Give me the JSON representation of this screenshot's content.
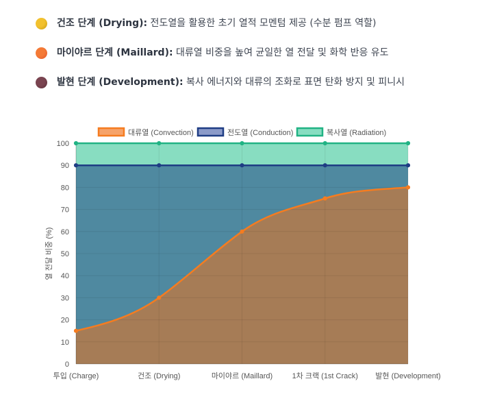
{
  "stages": [
    {
      "title": "건조 단계 (Drying):",
      "desc": " 전도열을 활용한 초기 열적 모멘텀 제공 (수분 펌프 역할)",
      "color": "#f2c12e",
      "color_dark": "#c79a12"
    },
    {
      "title": "마이야르 단계 (Maillard):",
      "desc": " 대류열 비중을 높여 균일한 열 전달 및 화학 반응 유도",
      "color": "#f47a36",
      "color_dark": "#e2552a"
    },
    {
      "title": "발현 단계 (Development):",
      "desc": " 복사 에너지와 대류의 조화로 표면 탄화 방지 및 피니시",
      "color": "#7a4450",
      "color_dark": "#5b2f3a"
    }
  ],
  "chart_data": {
    "type": "area",
    "stacked": true,
    "categories": [
      "투입 (Charge)",
      "건조 (Drying)",
      "마이야르 (Maillard)",
      "1차 크랙 (1st Crack)",
      "발현 (Development)"
    ],
    "series": [
      {
        "name": "대류열 (Convection)",
        "values": [
          15,
          30,
          60,
          75,
          80
        ],
        "color": "#f57c20",
        "fill": "#a67c56",
        "legend_fill": "#f6a36a"
      },
      {
        "name": "전도열 (Conduction)",
        "values": [
          75,
          60,
          30,
          15,
          10
        ],
        "color": "#1f3d84",
        "fill": "#4f89a0",
        "legend_fill": "#8c9bc9"
      },
      {
        "name": "복사열 (Radiation)",
        "values": [
          10,
          10,
          10,
          10,
          10
        ],
        "color": "#21b384",
        "fill": "#88ddc1",
        "legend_fill": "#88ddc1"
      }
    ],
    "xlabel": "",
    "ylabel": "열 전달 비중 (%)",
    "ylim": [
      0,
      100
    ],
    "yticks": [
      0,
      10,
      20,
      30,
      40,
      50,
      60,
      70,
      80,
      90,
      100
    ],
    "grid": true,
    "legend_position": "top"
  }
}
